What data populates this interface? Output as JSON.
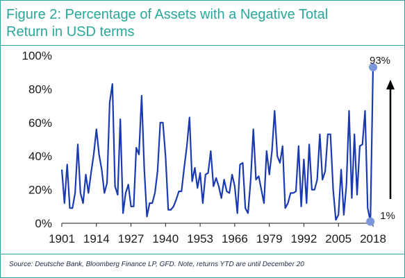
{
  "chart_data": {
    "type": "line",
    "title_line1": "Figure 2: Percentage of Assets with a Negative Total",
    "title_line2": "Return in USD terms",
    "xlabel": "",
    "ylabel": "",
    "ylim": [
      0,
      100
    ],
    "xlim": [
      1901,
      2018
    ],
    "y_ticks": [
      "0%",
      "20%",
      "40%",
      "60%",
      "80%",
      "100%"
    ],
    "x_ticks": [
      "1901",
      "1914",
      "1927",
      "1940",
      "1953",
      "1966",
      "1979",
      "1992",
      "2005",
      "2018"
    ],
    "series": [
      {
        "values": [
          [
            1901,
            32
          ],
          [
            1902,
            12
          ],
          [
            1903,
            35
          ],
          [
            1904,
            9
          ],
          [
            1905,
            9
          ],
          [
            1906,
            18
          ],
          [
            1907,
            47
          ],
          [
            1908,
            18
          ],
          [
            1909,
            12
          ],
          [
            1910,
            29
          ],
          [
            1911,
            18
          ],
          [
            1912,
            30
          ],
          [
            1913,
            41
          ],
          [
            1914,
            56
          ],
          [
            1915,
            41
          ],
          [
            1916,
            32
          ],
          [
            1917,
            18
          ],
          [
            1918,
            24
          ],
          [
            1919,
            72
          ],
          [
            1920,
            83
          ],
          [
            1921,
            22
          ],
          [
            1922,
            17
          ],
          [
            1923,
            62
          ],
          [
            1924,
            6
          ],
          [
            1925,
            18
          ],
          [
            1926,
            23
          ],
          [
            1927,
            10
          ],
          [
            1928,
            10
          ],
          [
            1929,
            45
          ],
          [
            1930,
            41
          ],
          [
            1931,
            76
          ],
          [
            1932,
            32
          ],
          [
            1933,
            4
          ],
          [
            1934,
            12
          ],
          [
            1935,
            12
          ],
          [
            1936,
            18
          ],
          [
            1937,
            31
          ],
          [
            1938,
            60
          ],
          [
            1939,
            60
          ],
          [
            1940,
            40
          ],
          [
            1941,
            8
          ],
          [
            1942,
            8
          ],
          [
            1943,
            10
          ],
          [
            1944,
            14
          ],
          [
            1945,
            19
          ],
          [
            1946,
            19
          ],
          [
            1947,
            33
          ],
          [
            1948,
            46
          ],
          [
            1949,
            63
          ],
          [
            1950,
            25
          ],
          [
            1951,
            33
          ],
          [
            1952,
            21
          ],
          [
            1953,
            30
          ],
          [
            1954,
            12
          ],
          [
            1955,
            29
          ],
          [
            1956,
            30
          ],
          [
            1957,
            43
          ],
          [
            1958,
            22
          ],
          [
            1959,
            27
          ],
          [
            1960,
            22
          ],
          [
            1961,
            15
          ],
          [
            1962,
            26
          ],
          [
            1963,
            19
          ],
          [
            1964,
            18
          ],
          [
            1965,
            29
          ],
          [
            1966,
            22
          ],
          [
            1967,
            6
          ],
          [
            1968,
            35
          ],
          [
            1969,
            36
          ],
          [
            1970,
            9
          ],
          [
            1971,
            6
          ],
          [
            1972,
            26
          ],
          [
            1973,
            56
          ],
          [
            1974,
            26
          ],
          [
            1975,
            28
          ],
          [
            1976,
            20
          ],
          [
            1977,
            12
          ],
          [
            1978,
            43
          ],
          [
            1979,
            29
          ],
          [
            1980,
            43
          ],
          [
            1981,
            67
          ],
          [
            1982,
            40
          ],
          [
            1983,
            36
          ],
          [
            1984,
            46
          ],
          [
            1985,
            9
          ],
          [
            1986,
            12
          ],
          [
            1987,
            18
          ],
          [
            1988,
            18
          ],
          [
            1989,
            19
          ],
          [
            1990,
            46
          ],
          [
            1991,
            10
          ],
          [
            1992,
            38
          ],
          [
            1993,
            12
          ],
          [
            1994,
            47
          ],
          [
            1995,
            20
          ],
          [
            1996,
            20
          ],
          [
            1997,
            26
          ],
          [
            1998,
            53
          ],
          [
            1999,
            26
          ],
          [
            2000,
            31
          ],
          [
            2001,
            53
          ],
          [
            2002,
            53
          ],
          [
            2003,
            20
          ],
          [
            2004,
            2
          ],
          [
            2005,
            5
          ],
          [
            2006,
            32
          ],
          [
            2007,
            5
          ],
          [
            2008,
            23
          ],
          [
            2009,
            67
          ],
          [
            2010,
            15
          ],
          [
            2011,
            53
          ],
          [
            2012,
            17
          ],
          [
            2013,
            46
          ],
          [
            2014,
            47
          ],
          [
            2015,
            67
          ],
          [
            2016,
            9
          ],
          [
            2017,
            1
          ],
          [
            2018,
            93
          ]
        ]
      }
    ],
    "annotations": [
      {
        "label": "93%",
        "x": 2018,
        "y": 93
      },
      {
        "label": "1%",
        "x": 2017,
        "y": 1
      }
    ],
    "colors": {
      "line": "#1a3ab0",
      "marker": "#7b97d9",
      "title": "#2aa79b",
      "rule": "#2aa79b",
      "arrow": "#000000"
    }
  },
  "source": "Source: Deutsche Bank, Bloomberg Finance LP, GFD. Note, returns YTD are until December 20"
}
